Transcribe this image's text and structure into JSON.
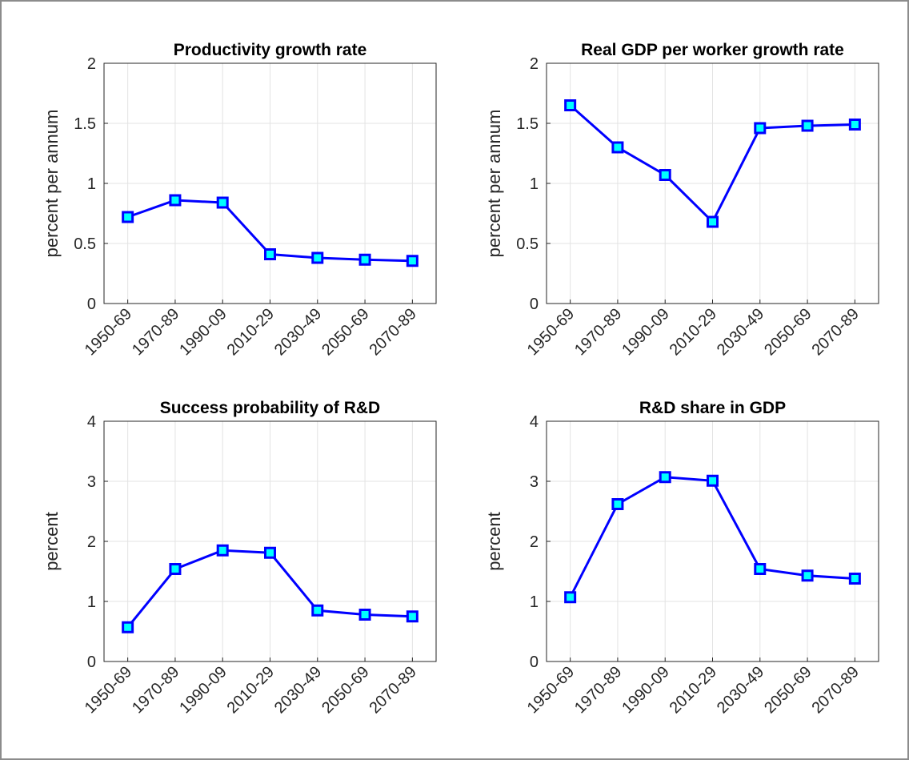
{
  "chart_data": [
    {
      "type": "line",
      "title": "Productivity growth rate",
      "ylabel": "percent per annum",
      "categories": [
        "1950-69",
        "1970-89",
        "1990-09",
        "2010-29",
        "2030-49",
        "2050-69",
        "2070-89"
      ],
      "values": [
        0.72,
        0.86,
        0.84,
        0.41,
        0.38,
        0.365,
        0.355
      ],
      "color": "#0000ff",
      "marker_color": "#00ffff",
      "ylim": [
        0,
        2
      ],
      "yticks": [
        0,
        0.5,
        1,
        1.5,
        2
      ],
      "grid": true
    },
    {
      "type": "line",
      "title": "Real GDP per worker growth rate",
      "ylabel": "percent per annum",
      "categories": [
        "1950-69",
        "1970-89",
        "1990-09",
        "2010-29",
        "2030-49",
        "2050-69",
        "2070-89"
      ],
      "values": [
        1.65,
        1.3,
        1.07,
        0.68,
        1.46,
        1.48,
        1.49
      ],
      "color": "#0000ff",
      "marker_color": "#00ffff",
      "ylim": [
        0,
        2
      ],
      "yticks": [
        0,
        0.5,
        1,
        1.5,
        2
      ],
      "grid": true
    },
    {
      "type": "line",
      "title": "Success probability of R&D",
      "ylabel": "percent",
      "categories": [
        "1950-69",
        "1970-89",
        "1990-09",
        "2010-29",
        "2030-49",
        "2050-69",
        "2070-89"
      ],
      "values": [
        0.57,
        1.54,
        1.85,
        1.81,
        0.85,
        0.78,
        0.75
      ],
      "color": "#0000ff",
      "marker_color": "#00ffff",
      "ylim": [
        0,
        4
      ],
      "yticks": [
        0,
        1,
        2,
        3,
        4
      ],
      "grid": true
    },
    {
      "type": "line",
      "title": "R&D share in GDP",
      "ylabel": "percent",
      "categories": [
        "1950-69",
        "1970-89",
        "1990-09",
        "2010-29",
        "2030-49",
        "2050-69",
        "2070-89"
      ],
      "values": [
        1.07,
        2.62,
        3.07,
        3.01,
        1.54,
        1.43,
        1.38
      ],
      "color": "#0000ff",
      "marker_color": "#00ffff",
      "ylim": [
        0,
        4
      ],
      "yticks": [
        0,
        1,
        2,
        3,
        4
      ],
      "grid": true
    }
  ]
}
